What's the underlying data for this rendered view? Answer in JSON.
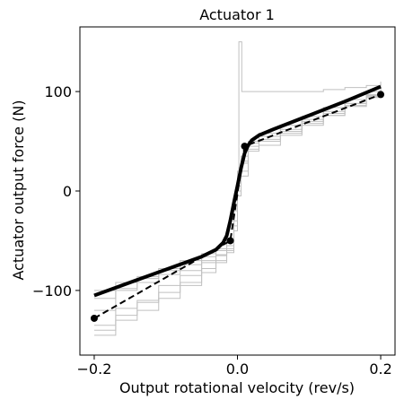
{
  "chart_data": {
    "type": "line",
    "title": "Actuator 1",
    "xlabel": "Output rotational velocity  (rev/s)",
    "ylabel": "Actuator output force (N)",
    "xlim": [
      -0.22,
      0.22
    ],
    "ylim": [
      -165,
      165
    ],
    "xticks": [
      -0.2,
      0.0,
      0.2
    ],
    "xtick_labels": [
      "−0.2",
      "0.0",
      "0.2"
    ],
    "yticks": [
      -100,
      0,
      100
    ],
    "ytick_labels": [
      "−100",
      "0",
      "100"
    ],
    "grid": false,
    "legend": "none",
    "colors": {
      "raw": "#c0c0c0",
      "fit": "#000000",
      "model": "#000000",
      "points": "#000000"
    },
    "series": [
      {
        "style": "thin-gray-steps",
        "x": [
          -0.2,
          -0.17,
          -0.14,
          -0.11,
          -0.08,
          -0.05,
          -0.03,
          -0.015,
          -0.005,
          0.0,
          0.005,
          0.015,
          0.03,
          0.06,
          0.09,
          0.12,
          0.15,
          0.18,
          0.2
        ],
        "y": [
          -135,
          -118,
          -110,
          -102,
          -92,
          -78,
          -70,
          -62,
          -20,
          5,
          30,
          45,
          52,
          62,
          72,
          80,
          88,
          96,
          105
        ]
      },
      {
        "style": "thin-gray-steps",
        "x": [
          -0.2,
          -0.17,
          -0.14,
          -0.11,
          -0.08,
          -0.05,
          -0.03,
          -0.015,
          -0.005,
          0.0,
          0.005,
          0.015,
          0.03,
          0.06,
          0.09,
          0.12,
          0.15,
          0.18,
          0.2
        ],
        "y": [
          -108,
          -98,
          -88,
          -80,
          -74,
          -66,
          -60,
          -55,
          -30,
          0,
          20,
          48,
          58,
          66,
          75,
          84,
          92,
          100,
          108
        ]
      },
      {
        "style": "thin-gray-steps",
        "x": [
          -0.2,
          -0.17,
          -0.14,
          -0.11,
          -0.08,
          -0.05,
          -0.03,
          -0.015,
          -0.005,
          0.0,
          0.005,
          0.015,
          0.03,
          0.06,
          0.09,
          0.12,
          0.15,
          0.18,
          0.2
        ],
        "y": [
          -145,
          -125,
          -112,
          -95,
          -85,
          -72,
          -64,
          -50,
          -10,
          10,
          35,
          50,
          55,
          60,
          68,
          76,
          85,
          94,
          101
        ]
      },
      {
        "style": "thin-gray-steps",
        "x": [
          -0.2,
          -0.17,
          -0.14,
          -0.11,
          -0.08,
          -0.05,
          -0.03,
          -0.015,
          -0.005,
          0.0,
          0.005,
          0.015,
          0.03,
          0.06,
          0.09,
          0.12,
          0.15,
          0.18,
          0.2
        ],
        "y": [
          -100,
          -92,
          -86,
          -78,
          -70,
          -63,
          -58,
          -52,
          -35,
          -5,
          15,
          42,
          50,
          58,
          70,
          78,
          88,
          97,
          110
        ]
      },
      {
        "style": "thin-gray-steps",
        "x": [
          -0.2,
          -0.17,
          -0.14,
          -0.11,
          -0.08,
          -0.05,
          -0.03,
          -0.015,
          -0.005,
          0.0,
          0.002,
          0.004,
          0.006,
          0.01,
          0.03,
          0.06,
          0.09,
          0.12,
          0.15,
          0.18,
          0.2
        ],
        "y": [
          -120,
          -100,
          -92,
          -84,
          -80,
          -70,
          -65,
          -60,
          -40,
          20,
          150,
          150,
          100,
          100,
          100,
          100,
          100,
          102,
          104,
          106,
          108
        ]
      },
      {
        "style": "thin-gray-steps",
        "x": [
          -0.2,
          -0.17,
          -0.14,
          -0.11,
          -0.08,
          -0.05,
          -0.03,
          -0.015,
          -0.005,
          0.0,
          0.005,
          0.015,
          0.03,
          0.06,
          0.09,
          0.12,
          0.15,
          0.18,
          0.2
        ],
        "y": [
          -140,
          -130,
          -120,
          -108,
          -95,
          -82,
          -72,
          -58,
          -18,
          8,
          28,
          40,
          46,
          56,
          66,
          76,
          86,
          95,
          103
        ]
      },
      {
        "style": "thick-black",
        "x": [
          -0.2,
          -0.15,
          -0.1,
          -0.05,
          -0.03,
          -0.02,
          -0.015,
          -0.01,
          -0.005,
          0.0,
          0.005,
          0.01,
          0.015,
          0.02,
          0.03,
          0.05,
          0.1,
          0.15,
          0.2
        ],
        "y": [
          -105,
          -92,
          -79,
          -66,
          -59,
          -52,
          -45,
          -30,
          -12,
          5,
          23,
          38,
          46,
          51,
          56,
          62,
          76,
          90,
          105
        ]
      },
      {
        "style": "dashed-black",
        "x": [
          -0.2,
          -0.01,
          0.01,
          0.2
        ],
        "y": [
          -128,
          -50,
          45,
          97
        ]
      },
      {
        "style": "markers",
        "x": [
          -0.2,
          -0.01,
          0.01,
          0.2
        ],
        "y": [
          -128,
          -50,
          45,
          97
        ]
      }
    ]
  }
}
